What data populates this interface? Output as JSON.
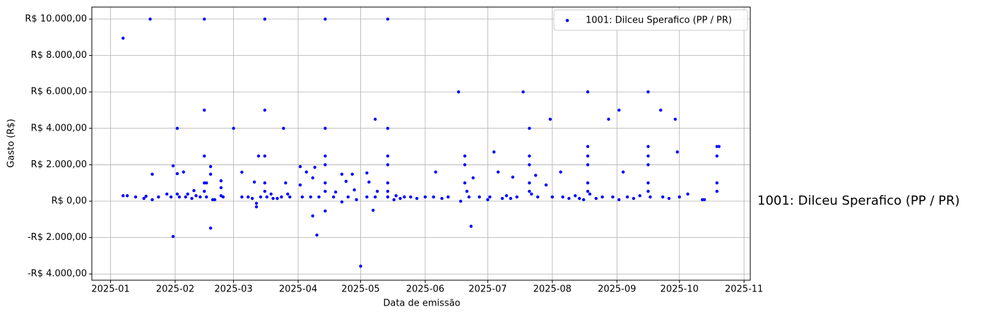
{
  "chart_data": {
    "type": "scatter",
    "x_label": "Data de emissão",
    "y_label": "Gasto (R$)",
    "annotation": "1001: Dilceu Sperafico (PP / PR)",
    "grid": true,
    "legend": "upper right",
    "xlim": [
      "2024-12-23",
      "2025-11-04"
    ],
    "xticks": [
      {
        "value": "2025-01-01",
        "label": "2025-01"
      },
      {
        "value": "2025-02-01",
        "label": "2025-02"
      },
      {
        "value": "2025-03-01",
        "label": "2025-03"
      },
      {
        "value": "2025-04-01",
        "label": "2025-04"
      },
      {
        "value": "2025-05-01",
        "label": "2025-05"
      },
      {
        "value": "2025-06-01",
        "label": "2025-06"
      },
      {
        "value": "2025-07-01",
        "label": "2025-07"
      },
      {
        "value": "2025-08-01",
        "label": "2025-08"
      },
      {
        "value": "2025-09-01",
        "label": "2025-09"
      },
      {
        "value": "2025-10-01",
        "label": "2025-10"
      },
      {
        "value": "2025-11-01",
        "label": "2025-11"
      }
    ],
    "ylim": [
      -4340,
      10660
    ],
    "yticks": [
      {
        "value": -4000,
        "label": "-R$ 4.000,00"
      },
      {
        "value": -2000,
        "label": "-R$ 2.000,00"
      },
      {
        "value": 0,
        "label": "R$ 0,00"
      },
      {
        "value": 2000,
        "label": "R$ 2.000,00"
      },
      {
        "value": 4000,
        "label": "R$ 4.000,00"
      },
      {
        "value": 6000,
        "label": "R$ 6.000,00"
      },
      {
        "value": 8000,
        "label": "R$ 8.000,00"
      },
      {
        "value": 10000,
        "label": "R$ 10.000,00"
      }
    ],
    "series": [
      {
        "name": "1001: Dilceu Sperafico (PP / PR)",
        "color": "#0000ff",
        "x": [
          "2025-01-07",
          "2025-01-07",
          "2025-01-09",
          "2025-01-13",
          "2025-01-17",
          "2025-01-18",
          "2025-01-20",
          "2025-01-21",
          "2025-01-21",
          "2025-01-24",
          "2025-01-28",
          "2025-01-30",
          "2025-01-31",
          "2025-01-31",
          "2025-02-02",
          "2025-02-02",
          "2025-02-02",
          "2025-02-03",
          "2025-02-05",
          "2025-02-06",
          "2025-02-07",
          "2025-02-09",
          "2025-02-10",
          "2025-02-11",
          "2025-02-13",
          "2025-02-15",
          "2025-02-15",
          "2025-02-15",
          "2025-02-15",
          "2025-02-15",
          "2025-02-16",
          "2025-02-16",
          "2025-02-18",
          "2025-02-18",
          "2025-02-18",
          "2025-02-19",
          "2025-02-20",
          "2025-02-23",
          "2025-02-23",
          "2025-02-23",
          "2025-02-24",
          "2025-03-01",
          "2025-03-05",
          "2025-03-05",
          "2025-03-08",
          "2025-03-10",
          "2025-03-11",
          "2025-03-12",
          "2025-03-12",
          "2025-03-13",
          "2025-03-14",
          "2025-03-16",
          "2025-03-16",
          "2025-03-16",
          "2025-03-16",
          "2025-03-16",
          "2025-03-17",
          "2025-03-19",
          "2025-03-20",
          "2025-03-22",
          "2025-03-24",
          "2025-03-25",
          "2025-03-26",
          "2025-03-27",
          "2025-03-28",
          "2025-04-02",
          "2025-04-02",
          "2025-04-03",
          "2025-04-05",
          "2025-04-07",
          "2025-04-08",
          "2025-04-08",
          "2025-04-09",
          "2025-04-10",
          "2025-04-11",
          "2025-04-14",
          "2025-04-14",
          "2025-04-14",
          "2025-04-14",
          "2025-04-14",
          "2025-04-14",
          "2025-04-14",
          "2025-04-18",
          "2025-04-19",
          "2025-04-22",
          "2025-04-22",
          "2025-04-24",
          "2025-04-25",
          "2025-04-27",
          "2025-04-28",
          "2025-04-29",
          "2025-05-01",
          "2025-05-04",
          "2025-05-04",
          "2025-05-05",
          "2025-05-07",
          "2025-05-08",
          "2025-05-08",
          "2025-05-09",
          "2025-05-14",
          "2025-05-14",
          "2025-05-14",
          "2025-05-14",
          "2025-05-14",
          "2025-05-14",
          "2025-05-14",
          "2025-05-17",
          "2025-05-18",
          "2025-05-20",
          "2025-05-22",
          "2025-05-25",
          "2025-05-28",
          "2025-06-01",
          "2025-06-06",
          "2025-06-05",
          "2025-06-09",
          "2025-06-12",
          "2025-06-17",
          "2025-06-18",
          "2025-06-20",
          "2025-06-20",
          "2025-06-20",
          "2025-06-21",
          "2025-06-22",
          "2025-06-23",
          "2025-06-24",
          "2025-06-27",
          "2025-07-01",
          "2025-07-02",
          "2025-07-04",
          "2025-07-06",
          "2025-07-08",
          "2025-07-10",
          "2025-07-12",
          "2025-07-13",
          "2025-07-15",
          "2025-07-18",
          "2025-07-21",
          "2025-07-21",
          "2025-07-21",
          "2025-07-21",
          "2025-07-21",
          "2025-07-22",
          "2025-07-24",
          "2025-07-25",
          "2025-07-29",
          "2025-07-31",
          "2025-08-01",
          "2025-08-05",
          "2025-08-06",
          "2025-08-09",
          "2025-08-12",
          "2025-08-14",
          "2025-08-16",
          "2025-08-18",
          "2025-08-18",
          "2025-08-18",
          "2025-08-18",
          "2025-08-18",
          "2025-08-18",
          "2025-08-19",
          "2025-08-22",
          "2025-08-25",
          "2025-08-28",
          "2025-08-30",
          "2025-09-02",
          "2025-09-02",
          "2025-09-04",
          "2025-09-06",
          "2025-09-09",
          "2025-09-12",
          "2025-09-16",
          "2025-09-16",
          "2025-09-16",
          "2025-09-16",
          "2025-09-16",
          "2025-09-16",
          "2025-09-17",
          "2025-09-22",
          "2025-09-23",
          "2025-09-26",
          "2025-09-29",
          "2025-09-30",
          "2025-10-01",
          "2025-10-05",
          "2025-10-12",
          "2025-10-13",
          "2025-10-19",
          "2025-10-19",
          "2025-10-19",
          "2025-10-19",
          "2025-10-20"
        ],
        "values": [
          8950,
          300,
          300,
          230,
          150,
          270,
          10000,
          1480,
          80,
          230,
          390,
          230,
          1940,
          -1940,
          1510,
          390,
          4000,
          230,
          1600,
          230,
          390,
          150,
          580,
          300,
          230,
          10000,
          5000,
          2480,
          1000,
          540,
          1000,
          230,
          1900,
          1480,
          -1480,
          80,
          80,
          1120,
          740,
          300,
          230,
          4000,
          1590,
          230,
          230,
          150,
          1050,
          -120,
          -310,
          2480,
          230,
          10000,
          5000,
          2480,
          1000,
          540,
          230,
          390,
          150,
          150,
          230,
          4000,
          1000,
          390,
          230,
          1900,
          890,
          230,
          1600,
          230,
          -810,
          1280,
          1860,
          -1860,
          230,
          10000,
          4000,
          2480,
          2000,
          1000,
          540,
          -540,
          230,
          500,
          1480,
          -40,
          1090,
          230,
          1480,
          620,
          80,
          -3570,
          230,
          1550,
          1050,
          -500,
          4500,
          230,
          540,
          10000,
          4000,
          2480,
          2000,
          1000,
          540,
          230,
          80,
          300,
          150,
          230,
          230,
          150,
          230,
          1600,
          230,
          150,
          230,
          6000,
          0,
          1000,
          2000,
          2480,
          540,
          230,
          -1380,
          1280,
          230,
          80,
          230,
          2700,
          1600,
          150,
          300,
          150,
          1320,
          230,
          6000,
          4000,
          2480,
          2000,
          1000,
          540,
          390,
          1420,
          230,
          890,
          4500,
          230,
          1600,
          230,
          150,
          300,
          150,
          80,
          6000,
          3000,
          2480,
          2000,
          1000,
          540,
          390,
          150,
          230,
          4500,
          230,
          5000,
          80,
          1600,
          230,
          150,
          300,
          6000,
          3000,
          2480,
          2000,
          1000,
          540,
          230,
          5000,
          230,
          150,
          4500,
          2700,
          230,
          390,
          80,
          80,
          3000,
          2480,
          1000,
          540,
          3000
        ]
      }
    ]
  }
}
